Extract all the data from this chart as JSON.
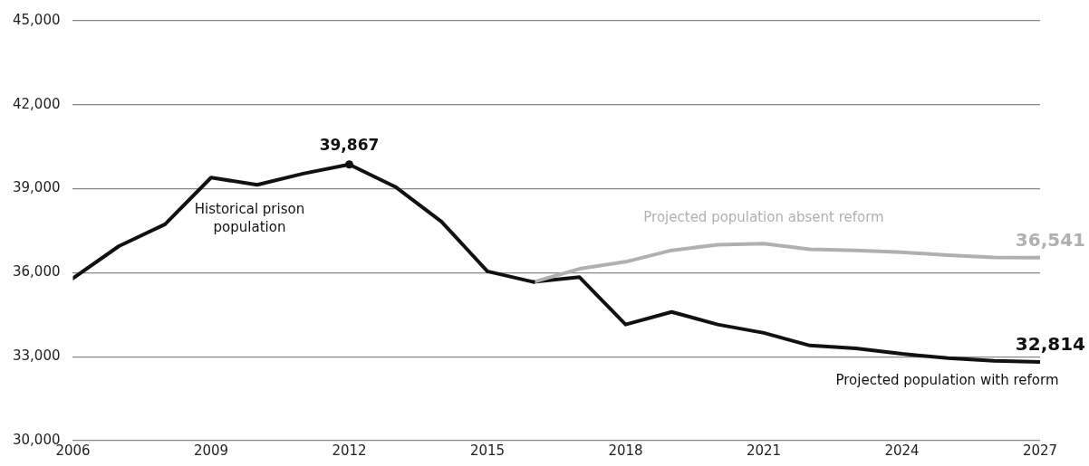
{
  "chart_data": {
    "type": "line",
    "x": [
      2006,
      2007,
      2008,
      2009,
      2010,
      2011,
      2012,
      2013,
      2014,
      2015,
      2016
    ],
    "xlim": [
      2006,
      2027
    ],
    "xticks": [
      2006,
      2009,
      2012,
      2015,
      2018,
      2021,
      2024,
      2027
    ],
    "ylim": [
      30000,
      45000
    ],
    "yticks": [
      {
        "value": 30000,
        "label": "30,000"
      },
      {
        "value": 33000,
        "label": "33,000"
      },
      {
        "value": 36000,
        "label": "36,000"
      },
      {
        "value": 39000,
        "label": "39,000"
      },
      {
        "value": 42000,
        "label": "42,000"
      },
      {
        "value": 45000,
        "label": "45,000"
      }
    ],
    "grid": "y",
    "legend": false,
    "marker": "none",
    "line_style": "solid",
    "series": [
      {
        "name": "Historical prison population",
        "color": "#111111",
        "values": [
          35800,
          36950,
          37730,
          39400,
          39140,
          39540,
          39867,
          39070,
          37830,
          36050,
          35670
        ],
        "value_labels": [
          null,
          null,
          null,
          null,
          null,
          null,
          "39,867",
          null,
          null,
          null,
          null
        ]
      },
      {
        "name": "Projected population absent reform",
        "color": "#b0b0b0",
        "x": [
          2016,
          2017,
          2018,
          2019,
          2020,
          2021,
          2022,
          2023,
          2024,
          2025,
          2026,
          2027
        ],
        "values": [
          35670,
          36140,
          36390,
          36800,
          37000,
          37040,
          36840,
          36800,
          36730,
          36630,
          36550,
          36541
        ],
        "value_labels": [
          null,
          null,
          null,
          null,
          null,
          null,
          null,
          null,
          null,
          null,
          null,
          "36,541"
        ]
      },
      {
        "name": "Projected population with reform",
        "color": "#111111",
        "x": [
          2016,
          2017,
          2018,
          2019,
          2020,
          2021,
          2022,
          2023,
          2024,
          2025,
          2026,
          2027
        ],
        "values": [
          35670,
          35840,
          34150,
          34600,
          34150,
          33850,
          33400,
          33300,
          33100,
          32950,
          32850,
          32814
        ],
        "value_labels": [
          null,
          null,
          null,
          null,
          null,
          null,
          null,
          null,
          null,
          null,
          null,
          "32,814"
        ]
      }
    ]
  }
}
